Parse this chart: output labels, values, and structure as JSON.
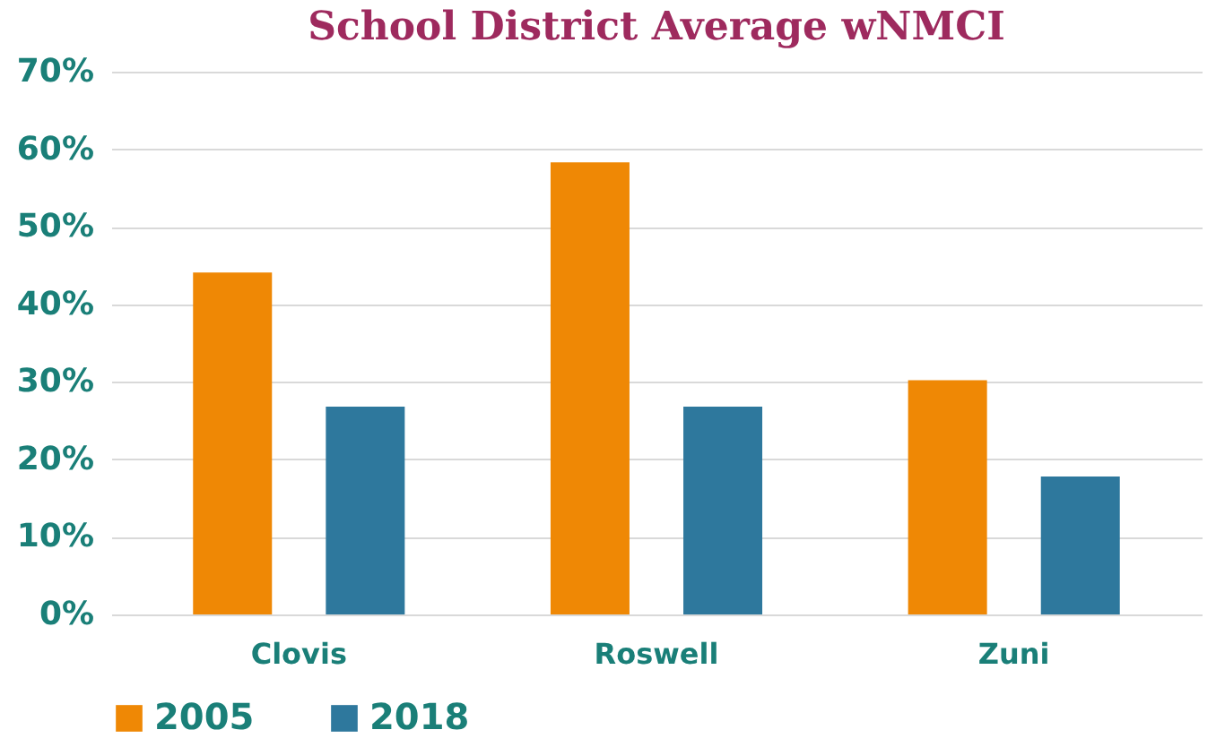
{
  "chart_data": {
    "type": "bar",
    "title": "School District Average wNMCI",
    "categories": [
      "Clovis",
      "Roswell",
      "Zuni"
    ],
    "series": [
      {
        "name": "2005",
        "color": "#ef8805",
        "values": [
          44.1,
          58.3,
          30.2
        ]
      },
      {
        "name": "2018",
        "color": "#2e789d",
        "values": [
          26.8,
          26.8,
          17.8
        ]
      }
    ],
    "ylim": [
      0,
      70
    ],
    "yticks": [
      {
        "value": 0,
        "label": "0%"
      },
      {
        "value": 10,
        "label": "10%"
      },
      {
        "value": 20,
        "label": "20%"
      },
      {
        "value": 30,
        "label": "30%"
      },
      {
        "value": 40,
        "label": "40%"
      },
      {
        "value": 50,
        "label": "50%"
      },
      {
        "value": 60,
        "label": "60%"
      },
      {
        "value": 70,
        "label": "70%"
      }
    ],
    "grid": "y",
    "legend": "bottom"
  }
}
